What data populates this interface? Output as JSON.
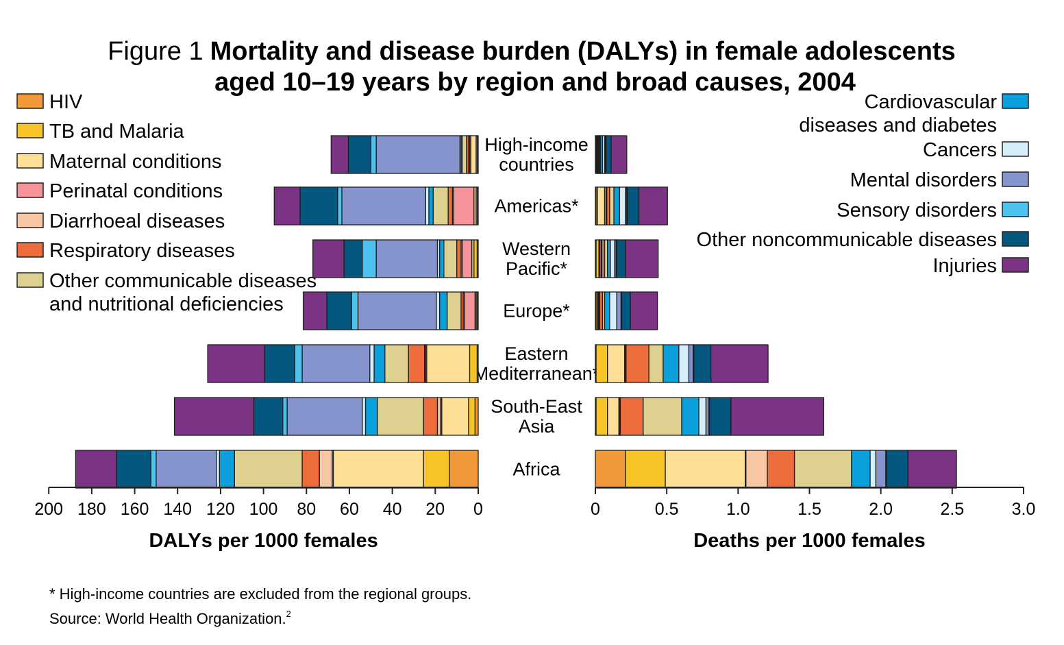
{
  "title": {
    "prefix": "Figure 1",
    "line1": "Mortality and disease burden (DALYs) in female adolescents",
    "line2": "aged 10–19 years by region and broad causes, 2004"
  },
  "footnote": "* High-income countries are excluded from the regional groups.",
  "source": "Source: World Health Organization.",
  "source_ref": "2",
  "chart_data": {
    "type": "bar",
    "orientation": "horizontal",
    "stacked": true,
    "categories": [
      [
        "High-income",
        "countries"
      ],
      [
        "Americas*"
      ],
      [
        "Western",
        "Pacific*"
      ],
      [
        "Europe*"
      ],
      [
        "Eastern",
        "Mediterranean*"
      ],
      [
        "South-East",
        "Asia"
      ],
      [
        "Africa"
      ]
    ],
    "causes": [
      {
        "key": "hiv",
        "label": [
          "HIV"
        ],
        "color": "#f0983a"
      },
      {
        "key": "tb",
        "label": [
          "TB and Malaria"
        ],
        "color": "#f6c427"
      },
      {
        "key": "maternal",
        "label": [
          "Maternal conditions"
        ],
        "color": "#fddf95"
      },
      {
        "key": "perinatal",
        "label": [
          "Perinatal conditions"
        ],
        "color": "#f5939a"
      },
      {
        "key": "diarrhoeal",
        "label": [
          "Diarrhoeal diseases"
        ],
        "color": "#f6c7a2"
      },
      {
        "key": "respiratory",
        "label": [
          "Respiratory diseases"
        ],
        "color": "#ec6d3b"
      },
      {
        "key": "othercomm",
        "label": [
          "Other communicable diseases",
          "and nutritional deficiencies"
        ],
        "color": "#ded08e"
      },
      {
        "key": "cardio",
        "label": [
          "Cardiovascular",
          "diseases and diabetes"
        ],
        "color": "#0aa0dc"
      },
      {
        "key": "cancers",
        "label": [
          "Cancers"
        ],
        "color": "#d5eefa"
      },
      {
        "key": "mental",
        "label": [
          "Mental disorders"
        ],
        "color": "#8594cc"
      },
      {
        "key": "sensory",
        "label": [
          "Sensory disorders"
        ],
        "color": "#4cc2ee"
      },
      {
        "key": "otherncd",
        "label": [
          "Other noncommunicable diseases"
        ],
        "color": "#04587f"
      },
      {
        "key": "injuries",
        "label": [
          "Injuries"
        ],
        "color": "#7b3384"
      }
    ],
    "panels": [
      {
        "id": "dalys",
        "xlabel": "DALYs per 1000 females",
        "xlim": [
          0,
          200
        ],
        "ticks": [
          200,
          180,
          160,
          140,
          120,
          100,
          80,
          60,
          40,
          20,
          0
        ],
        "tick_labels": [
          "200",
          "180",
          "160",
          "140",
          "120",
          "100",
          "80",
          "60",
          "40",
          "20",
          "0"
        ],
        "values": [
          [
            0.5,
            0.5,
            2.5,
            0.5,
            0.5,
            1,
            2,
            0.5,
            0.5,
            39,
            2.5,
            10.5,
            8
          ],
          [
            0.5,
            0.5,
            1,
            9.5,
            0.5,
            2,
            7,
            2,
            1.5,
            39,
            2,
            17.5,
            12
          ],
          [
            0.5,
            1.5,
            1,
            4.5,
            0.5,
            2,
            6,
            2,
            1,
            28.5,
            6.5,
            8.5,
            14.5
          ],
          [
            0.5,
            0.5,
            0.5,
            5,
            0.5,
            1,
            6.5,
            3.5,
            1.5,
            36.5,
            3,
            11.5,
            11
          ],
          [
            0.5,
            3.5,
            20,
            0.5,
            0.5,
            7.5,
            11,
            5,
            2,
            31.5,
            3.5,
            14,
            26.5
          ],
          [
            1.5,
            3,
            12.5,
            0.5,
            1.5,
            6.5,
            21.5,
            5.5,
            1.5,
            35,
            2,
            13.5,
            37
          ],
          [
            13.5,
            12,
            42,
            0.5,
            6,
            8,
            31.5,
            7,
            1.5,
            28,
            2.5,
            16,
            19
          ]
        ]
      },
      {
        "id": "deaths",
        "xlabel": "Deaths per 1000 females",
        "xlim": [
          0,
          3
        ],
        "ticks": [
          0,
          0.5,
          1.0,
          1.5,
          2.0,
          2.5,
          3.0
        ],
        "tick_labels": [
          "0",
          "0.5",
          "1.0",
          "1.5",
          "2.0",
          "2.5",
          "3.0"
        ],
        "values": [
          [
            0.005,
            0.005,
            0.005,
            0.005,
            0.005,
            0.005,
            0.005,
            0.015,
            0.015,
            0.005,
            0.005,
            0.035,
            0.11
          ],
          [
            0.005,
            0.01,
            0.05,
            0.01,
            0.005,
            0.02,
            0.03,
            0.04,
            0.04,
            0.01,
            0.005,
            0.08,
            0.2
          ],
          [
            0.005,
            0.02,
            0.005,
            0.01,
            0.005,
            0.02,
            0.02,
            0.02,
            0.03,
            0.01,
            0.005,
            0.06,
            0.23
          ],
          [
            0.005,
            0.01,
            0.005,
            0.005,
            0.005,
            0.02,
            0.015,
            0.035,
            0.05,
            0.03,
            0.005,
            0.06,
            0.19
          ],
          [
            0.005,
            0.08,
            0.12,
            0.005,
            0.005,
            0.16,
            0.1,
            0.11,
            0.07,
            0.03,
            0.005,
            0.12,
            0.4
          ],
          [
            0.005,
            0.08,
            0.08,
            0.005,
            0.005,
            0.16,
            0.27,
            0.12,
            0.05,
            0.02,
            0.005,
            0.15,
            0.65
          ],
          [
            0.21,
            0.28,
            0.56,
            0.005,
            0.15,
            0.19,
            0.4,
            0.13,
            0.04,
            0.07,
            0.005,
            0.15,
            0.34
          ]
        ]
      }
    ]
  }
}
